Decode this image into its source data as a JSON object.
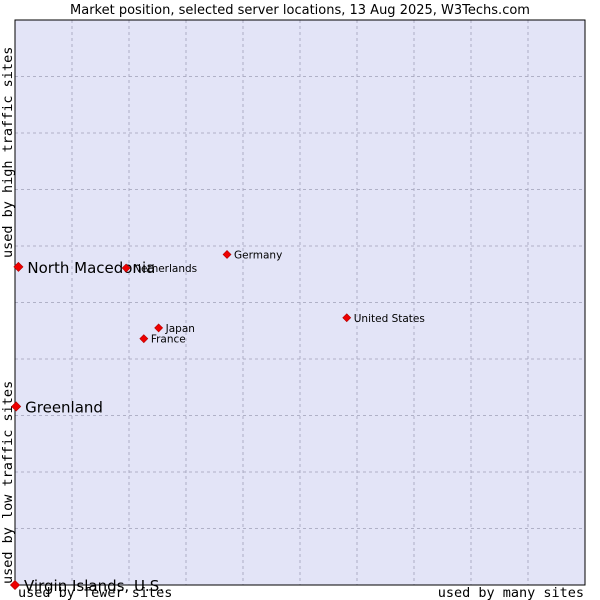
{
  "chart_data": {
    "type": "scatter",
    "title": "Market position, selected server locations, 13 Aug 2025, W3Techs.com",
    "xlabel_left": "used by fewer sites",
    "xlabel_right": "used by many sites",
    "ylabel_bottom": "used by low traffic sites",
    "ylabel_top": "used by high traffic sites",
    "xlim": [
      0,
      100
    ],
    "ylim": [
      0,
      100
    ],
    "grid": true,
    "colors": {
      "background": "#e3e4f7",
      "marker": "#ee0000",
      "frame": "#000000"
    },
    "points": [
      {
        "name": "North Macedonia",
        "x": 0.6,
        "y": 56.3,
        "highlight": true
      },
      {
        "name": "Greenland",
        "x": 0.2,
        "y": 31.6,
        "highlight": true
      },
      {
        "name": "Virgin Islands, U.S.",
        "x": 0.0,
        "y": 0.0,
        "highlight": true
      },
      {
        "name": "Netherlands",
        "x": 19.5,
        "y": 56.1,
        "highlight": false
      },
      {
        "name": "Germany",
        "x": 37.2,
        "y": 58.5,
        "highlight": false
      },
      {
        "name": "United States",
        "x": 58.2,
        "y": 47.3,
        "highlight": false
      },
      {
        "name": "Japan",
        "x": 25.2,
        "y": 45.5,
        "highlight": false
      },
      {
        "name": "France",
        "x": 22.6,
        "y": 43.6,
        "highlight": false
      }
    ]
  }
}
